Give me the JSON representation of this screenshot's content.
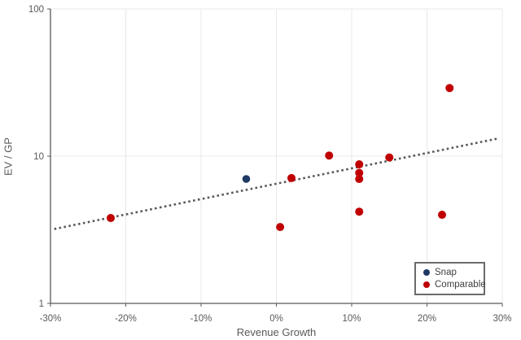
{
  "chart_data": {
    "type": "scatter",
    "title": "",
    "xlabel": "Revenue Growth",
    "ylabel": "EV / GP",
    "x_axis": {
      "min": -0.3,
      "max": 0.3,
      "format": "percent",
      "ticks": [
        {
          "value": -0.3,
          "label": "-30%"
        },
        {
          "value": -0.2,
          "label": "-20%"
        },
        {
          "value": -0.1,
          "label": "-10%"
        },
        {
          "value": 0.0,
          "label": "0%"
        },
        {
          "value": 0.1,
          "label": "10%"
        },
        {
          "value": 0.2,
          "label": "20%"
        },
        {
          "value": 0.3,
          "label": "30%"
        }
      ]
    },
    "y_axis": {
      "scale": "log",
      "min": 1,
      "max": 100,
      "ticks": [
        {
          "value": 1,
          "label": "1"
        },
        {
          "value": 10,
          "label": "10"
        },
        {
          "value": 100,
          "label": "100"
        }
      ]
    },
    "grid": true,
    "series": [
      {
        "name": "Snap",
        "color": "#1f3864",
        "marker_radius": 4.8,
        "points": [
          {
            "x": -0.04,
            "y": 7.0
          }
        ]
      },
      {
        "name": "Comparable",
        "color": "#c00000",
        "marker_radius": 5,
        "points": [
          {
            "x": -0.22,
            "y": 3.8
          },
          {
            "x": 0.005,
            "y": 3.3
          },
          {
            "x": 0.02,
            "y": 7.1
          },
          {
            "x": 0.07,
            "y": 10.1
          },
          {
            "x": 0.11,
            "y": 8.8
          },
          {
            "x": 0.11,
            "y": 7.7
          },
          {
            "x": 0.11,
            "y": 7.0
          },
          {
            "x": 0.11,
            "y": 4.2
          },
          {
            "x": 0.15,
            "y": 9.8
          },
          {
            "x": 0.22,
            "y": 4.0
          },
          {
            "x": 0.23,
            "y": 29.0
          }
        ]
      }
    ],
    "trendline": {
      "style": "dotted",
      "color": "#595959",
      "x1": -0.295,
      "y1": 3.2,
      "x2": 0.295,
      "y2": 13.2
    },
    "legend": {
      "position": "bottom-right",
      "items": [
        {
          "label": "Snap",
          "color": "#1f3864"
        },
        {
          "label": "Comparable",
          "color": "#c00000"
        }
      ]
    },
    "colors": {
      "axis_line": "#595959",
      "gridline": "#e8e8e8",
      "tick_label": "#595959",
      "background": "#ffffff"
    }
  }
}
